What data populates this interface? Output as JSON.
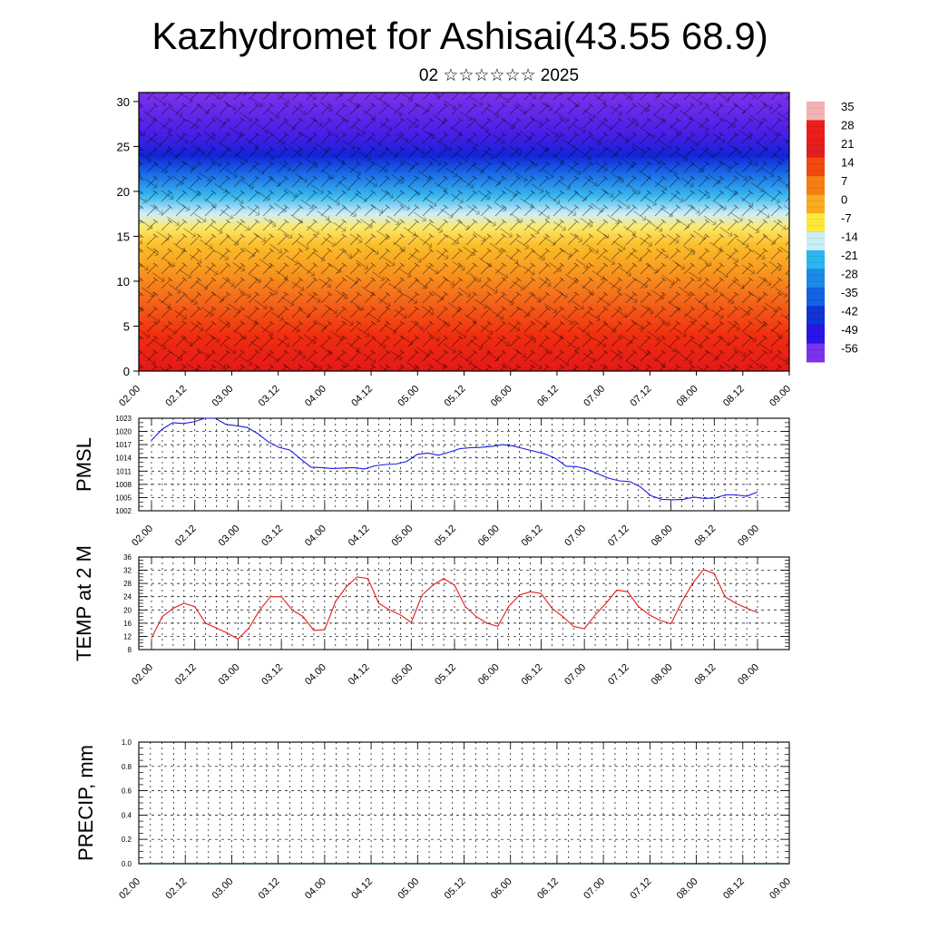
{
  "title": "Kazhydromet for Ashisai(43.55 68.9)",
  "subtitle": "02 ☆☆☆☆☆☆ 2025",
  "chart_data": [
    {
      "type": "heatmap",
      "name": "vertical-temperature-wind-section",
      "yticks": [
        0,
        5,
        10,
        15,
        20,
        25,
        30
      ],
      "ylim": [
        0,
        31
      ],
      "xticks": [
        "02.00",
        "02.12",
        "03.00",
        "03.12",
        "04.00",
        "04.12",
        "05.00",
        "05.12",
        "06.00",
        "06.12",
        "07.00",
        "07.12",
        "08.00",
        "08.12",
        "09.00"
      ],
      "colorbar": {
        "labels": [
          "35",
          "28",
          "21",
          "14",
          "7",
          "0",
          "-7",
          "-14",
          "-21",
          "-28",
          "-35",
          "-42",
          "-49",
          "-56"
        ],
        "colors": [
          "#f4b3b3",
          "#ee1c1c",
          "#e41e1e",
          "#f04a10",
          "#f57f12",
          "#fbab1e",
          "#fde93c",
          "#c8eef8",
          "#2ab7ef",
          "#1c8ae6",
          "#1462e4",
          "#1133d8",
          "#2a14e8",
          "#7a32ec"
        ]
      },
      "profile": [
        {
          "level": 0,
          "color": "#e41818"
        },
        {
          "level": 4,
          "color": "#f02e10"
        },
        {
          "level": 8,
          "color": "#f4681a"
        },
        {
          "level": 11,
          "color": "#f8961e"
        },
        {
          "level": 14,
          "color": "#fbbd2a"
        },
        {
          "level": 16,
          "color": "#fde86a"
        },
        {
          "level": 17.5,
          "color": "#d0eef6"
        },
        {
          "level": 19.5,
          "color": "#38b8ee"
        },
        {
          "level": 22,
          "color": "#1a6ae6"
        },
        {
          "level": 24,
          "color": "#1224d8"
        },
        {
          "level": 26.5,
          "color": "#4a1ee6"
        },
        {
          "level": 31,
          "color": "#7e32ec"
        }
      ]
    },
    {
      "type": "line",
      "ylabel": "PMSL",
      "ylim": [
        1002,
        1023
      ],
      "yticks": [
        1002,
        1005,
        1008,
        1011,
        1014,
        1017,
        1020,
        1023
      ],
      "xticks": [
        "02.00",
        "02.12",
        "03.00",
        "03.12",
        "04.00",
        "04.12",
        "05.00",
        "05.12",
        "06.00",
        "06.12",
        "07.00",
        "07.12",
        "08.00",
        "08.12",
        "09.00"
      ],
      "color": "#1a1ae6",
      "series": [
        {
          "values": [
            1018,
            1020.5,
            1022,
            1021.8,
            1022.2,
            1023,
            1023,
            1021.6,
            1021.3,
            1020.9,
            1019.5,
            1017.6,
            1016.4,
            1015.8,
            1013.8,
            1011.9,
            1011.8,
            1011.6,
            1011.7,
            1011.8,
            1011.5,
            1012.2,
            1012.5,
            1012.6,
            1013.2,
            1014.8,
            1015.1,
            1014.6,
            1015.3,
            1016.1,
            1016.3,
            1016.4,
            1016.6,
            1017,
            1016.7,
            1016.1,
            1015.5,
            1014.9,
            1013.9,
            1012.1,
            1012,
            1011.4,
            1010.4,
            1009.4,
            1008.8,
            1008.6,
            1007.4,
            1005.4,
            1004.6,
            1004.5,
            1004.6,
            1005.1,
            1004.8,
            1004.9,
            1005.6,
            1005.6,
            1005.3,
            1006.3
          ]
        }
      ]
    },
    {
      "type": "line",
      "ylabel": "TEMP at 2 M",
      "ylim": [
        8,
        36
      ],
      "yticks": [
        8,
        12,
        16,
        20,
        24,
        28,
        32,
        36
      ],
      "xticks": [
        "02.00",
        "02.12",
        "03.00",
        "03.12",
        "04.00",
        "04.12",
        "05.00",
        "05.12",
        "06.00",
        "06.12",
        "07.00",
        "07.12",
        "08.00",
        "08.12",
        "09.00"
      ],
      "color": "#e61a1a",
      "series": [
        {
          "values": [
            11.5,
            18,
            20.5,
            22,
            21,
            16,
            14.5,
            13,
            11.2,
            14.5,
            20,
            24,
            24,
            20,
            18,
            13.8,
            14,
            22.5,
            27,
            30,
            29.5,
            22,
            20,
            18.5,
            16.2,
            24.5,
            27.5,
            29.5,
            27.5,
            21,
            18,
            16,
            15,
            21,
            24.5,
            25.5,
            25,
            20.5,
            18,
            15,
            14.3,
            18.5,
            22,
            26,
            25.5,
            21,
            18.5,
            16.8,
            15.8,
            22.5,
            28,
            32.2,
            31,
            24,
            22,
            20.5,
            19.2
          ]
        }
      ]
    },
    {
      "type": "bar",
      "ylabel": "PRECIP, mm",
      "ylim": [
        0,
        1
      ],
      "yticks": [
        "0.0",
        "0.2",
        "0.4",
        "0.6",
        "0.8",
        "1.0"
      ],
      "xticks": [
        "02.00",
        "02.12",
        "03.00",
        "03.12",
        "04.00",
        "04.12",
        "05.00",
        "05.12",
        "06.00",
        "06.12",
        "07.00",
        "07.12",
        "08.00",
        "08.12",
        "09.00"
      ],
      "series": [
        {
          "values": [
            0,
            0,
            0,
            0,
            0,
            0,
            0,
            0,
            0,
            0,
            0,
            0,
            0,
            0,
            0
          ]
        }
      ]
    }
  ]
}
